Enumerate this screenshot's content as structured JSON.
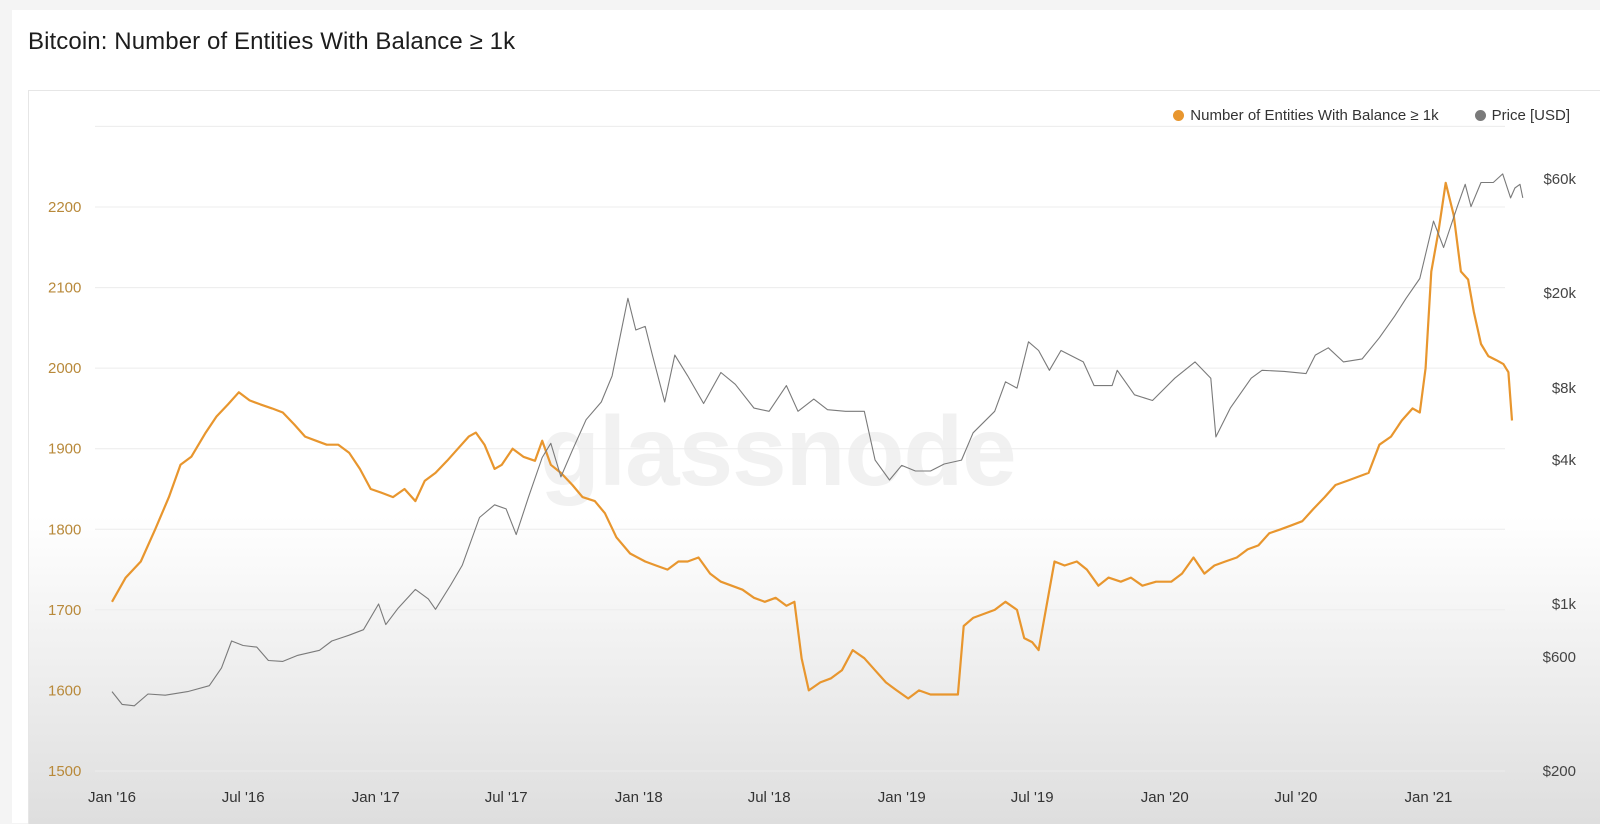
{
  "title": "Bitcoin: Number of Entities With Balance ≥ 1k",
  "watermark": "glassnode",
  "colors": {
    "entities": "#e8962e",
    "price": "#7a7a7a",
    "axis_left": "#b8893a",
    "axis_right": "#444444"
  },
  "legend": [
    {
      "label": "Number of Entities With Balance ≥ 1k",
      "color": "#e8962e"
    },
    {
      "label": "Price [USD]",
      "color": "#7a7a7a"
    }
  ],
  "chart_data": {
    "type": "line",
    "x_ticks": [
      "Jan '16",
      "Jul '16",
      "Jan '17",
      "Jul '17",
      "Jan '18",
      "Jul '18",
      "Jan '19",
      "Jul '19",
      "Jan '20",
      "Jul '20",
      "Jan '21"
    ],
    "y_left": {
      "ticks": [
        1500,
        1600,
        1700,
        1800,
        1900,
        2000,
        2100,
        2200
      ],
      "labels": [
        "1500",
        "1600",
        "1700",
        "1800",
        "1900",
        "2000",
        "2100",
        "2200"
      ],
      "range": [
        1500,
        2200
      ]
    },
    "y_right": {
      "scale": "log",
      "ticks": [
        200,
        600,
        1000,
        4000,
        8000,
        20000,
        60000
      ],
      "labels": [
        "$200",
        "$600",
        "$1k",
        "$4k",
        "$8k",
        "$20k",
        "$60k"
      ]
    },
    "series": [
      {
        "name": "Number of Entities With Balance ≥ 1k",
        "axis": "left",
        "points": [
          [
            "2016-01-01",
            1710
          ],
          [
            "2016-01-20",
            1740
          ],
          [
            "2016-02-10",
            1760
          ],
          [
            "2016-03-01",
            1800
          ],
          [
            "2016-03-20",
            1840
          ],
          [
            "2016-04-05",
            1880
          ],
          [
            "2016-04-20",
            1890
          ],
          [
            "2016-05-10",
            1920
          ],
          [
            "2016-05-25",
            1940
          ],
          [
            "2016-06-10",
            1955
          ],
          [
            "2016-06-25",
            1970
          ],
          [
            "2016-07-10",
            1960
          ],
          [
            "2016-07-25",
            1955
          ],
          [
            "2016-08-10",
            1950
          ],
          [
            "2016-08-25",
            1945
          ],
          [
            "2016-09-10",
            1930
          ],
          [
            "2016-09-25",
            1915
          ],
          [
            "2016-10-10",
            1910
          ],
          [
            "2016-10-25",
            1905
          ],
          [
            "2016-11-10",
            1905
          ],
          [
            "2016-11-25",
            1895
          ],
          [
            "2016-12-10",
            1875
          ],
          [
            "2016-12-25",
            1850
          ],
          [
            "2017-01-10",
            1845
          ],
          [
            "2017-01-25",
            1840
          ],
          [
            "2017-02-10",
            1850
          ],
          [
            "2017-02-25",
            1835
          ],
          [
            "2017-03-10",
            1860
          ],
          [
            "2017-03-25",
            1870
          ],
          [
            "2017-04-10",
            1885
          ],
          [
            "2017-04-25",
            1900
          ],
          [
            "2017-05-10",
            1915
          ],
          [
            "2017-05-20",
            1920
          ],
          [
            "2017-06-01",
            1905
          ],
          [
            "2017-06-15",
            1875
          ],
          [
            "2017-06-25",
            1880
          ],
          [
            "2017-07-10",
            1900
          ],
          [
            "2017-07-25",
            1890
          ],
          [
            "2017-08-10",
            1885
          ],
          [
            "2017-08-20",
            1910
          ],
          [
            "2017-09-01",
            1880
          ],
          [
            "2017-09-15",
            1870
          ],
          [
            "2017-10-01",
            1855
          ],
          [
            "2017-10-15",
            1840
          ],
          [
            "2017-11-01",
            1835
          ],
          [
            "2017-11-15",
            1820
          ],
          [
            "2017-12-01",
            1790
          ],
          [
            "2017-12-20",
            1770
          ],
          [
            "2018-01-10",
            1760
          ],
          [
            "2018-01-25",
            1755
          ],
          [
            "2018-02-10",
            1750
          ],
          [
            "2018-02-25",
            1760
          ],
          [
            "2018-03-10",
            1760
          ],
          [
            "2018-03-25",
            1765
          ],
          [
            "2018-04-10",
            1745
          ],
          [
            "2018-04-25",
            1735
          ],
          [
            "2018-05-10",
            1730
          ],
          [
            "2018-05-25",
            1725
          ],
          [
            "2018-06-10",
            1715
          ],
          [
            "2018-06-25",
            1710
          ],
          [
            "2018-07-10",
            1715
          ],
          [
            "2018-07-25",
            1705
          ],
          [
            "2018-08-05",
            1710
          ],
          [
            "2018-08-15",
            1640
          ],
          [
            "2018-08-25",
            1600
          ],
          [
            "2018-09-10",
            1610
          ],
          [
            "2018-09-25",
            1615
          ],
          [
            "2018-10-10",
            1625
          ],
          [
            "2018-10-25",
            1650
          ],
          [
            "2018-11-10",
            1640
          ],
          [
            "2018-11-25",
            1625
          ],
          [
            "2018-12-10",
            1610
          ],
          [
            "2018-12-25",
            1600
          ],
          [
            "2019-01-10",
            1590
          ],
          [
            "2019-01-25",
            1600
          ],
          [
            "2019-02-10",
            1595
          ],
          [
            "2019-02-25",
            1595
          ],
          [
            "2019-03-10",
            1595
          ],
          [
            "2019-03-20",
            1595
          ],
          [
            "2019-03-28",
            1680
          ],
          [
            "2019-04-10",
            1690
          ],
          [
            "2019-04-25",
            1695
          ],
          [
            "2019-05-10",
            1700
          ],
          [
            "2019-05-25",
            1710
          ],
          [
            "2019-06-10",
            1700
          ],
          [
            "2019-06-20",
            1665
          ],
          [
            "2019-07-01",
            1660
          ],
          [
            "2019-07-10",
            1650
          ],
          [
            "2019-07-20",
            1700
          ],
          [
            "2019-08-01",
            1760
          ],
          [
            "2019-08-15",
            1755
          ],
          [
            "2019-09-01",
            1760
          ],
          [
            "2019-09-15",
            1750
          ],
          [
            "2019-10-01",
            1730
          ],
          [
            "2019-10-15",
            1740
          ],
          [
            "2019-11-01",
            1735
          ],
          [
            "2019-11-15",
            1740
          ],
          [
            "2019-12-01",
            1730
          ],
          [
            "2019-12-20",
            1735
          ],
          [
            "2020-01-10",
            1735
          ],
          [
            "2020-01-25",
            1745
          ],
          [
            "2020-02-10",
            1765
          ],
          [
            "2020-02-25",
            1745
          ],
          [
            "2020-03-10",
            1755
          ],
          [
            "2020-03-25",
            1760
          ],
          [
            "2020-04-10",
            1765
          ],
          [
            "2020-04-25",
            1775
          ],
          [
            "2020-05-10",
            1780
          ],
          [
            "2020-05-25",
            1795
          ],
          [
            "2020-06-10",
            1800
          ],
          [
            "2020-06-25",
            1805
          ],
          [
            "2020-07-10",
            1810
          ],
          [
            "2020-07-25",
            1825
          ],
          [
            "2020-08-10",
            1840
          ],
          [
            "2020-08-25",
            1855
          ],
          [
            "2020-09-10",
            1860
          ],
          [
            "2020-09-25",
            1865
          ],
          [
            "2020-10-10",
            1870
          ],
          [
            "2020-10-25",
            1905
          ],
          [
            "2020-11-10",
            1915
          ],
          [
            "2020-11-25",
            1935
          ],
          [
            "2020-12-10",
            1950
          ],
          [
            "2020-12-20",
            1945
          ],
          [
            "2020-12-28",
            2000
          ],
          [
            "2021-01-05",
            2120
          ],
          [
            "2021-01-15",
            2170
          ],
          [
            "2021-01-25",
            2230
          ],
          [
            "2021-02-05",
            2190
          ],
          [
            "2021-02-15",
            2120
          ],
          [
            "2021-02-25",
            2110
          ],
          [
            "2021-03-05",
            2070
          ],
          [
            "2021-03-15",
            2030
          ],
          [
            "2021-03-25",
            2015
          ],
          [
            "2021-04-05",
            2010
          ],
          [
            "2021-04-15",
            2005
          ],
          [
            "2021-04-22",
            1995
          ],
          [
            "2021-04-27",
            1935
          ]
        ]
      },
      {
        "name": "Price [USD]",
        "axis": "right",
        "points": [
          [
            "2016-01-01",
            430
          ],
          [
            "2016-01-15",
            380
          ],
          [
            "2016-02-01",
            375
          ],
          [
            "2016-02-20",
            420
          ],
          [
            "2016-03-15",
            415
          ],
          [
            "2016-04-15",
            430
          ],
          [
            "2016-05-15",
            455
          ],
          [
            "2016-06-01",
            540
          ],
          [
            "2016-06-15",
            700
          ],
          [
            "2016-07-01",
            670
          ],
          [
            "2016-07-20",
            660
          ],
          [
            "2016-08-05",
            580
          ],
          [
            "2016-08-25",
            575
          ],
          [
            "2016-09-15",
            610
          ],
          [
            "2016-10-15",
            640
          ],
          [
            "2016-11-01",
            700
          ],
          [
            "2016-11-25",
            740
          ],
          [
            "2016-12-15",
            780
          ],
          [
            "2017-01-05",
            1000
          ],
          [
            "2017-01-15",
            820
          ],
          [
            "2017-02-01",
            960
          ],
          [
            "2017-02-25",
            1150
          ],
          [
            "2017-03-15",
            1050
          ],
          [
            "2017-03-25",
            950
          ],
          [
            "2017-04-15",
            1200
          ],
          [
            "2017-05-01",
            1450
          ],
          [
            "2017-05-25",
            2300
          ],
          [
            "2017-06-15",
            2600
          ],
          [
            "2017-07-01",
            2500
          ],
          [
            "2017-07-15",
            1950
          ],
          [
            "2017-08-01",
            2800
          ],
          [
            "2017-08-20",
            4100
          ],
          [
            "2017-09-01",
            4700
          ],
          [
            "2017-09-15",
            3400
          ],
          [
            "2017-10-01",
            4400
          ],
          [
            "2017-10-20",
            5900
          ],
          [
            "2017-11-10",
            7000
          ],
          [
            "2017-11-25",
            9000
          ],
          [
            "2017-12-10",
            15000
          ],
          [
            "2017-12-17",
            19000
          ],
          [
            "2017-12-28",
            14000
          ],
          [
            "2018-01-10",
            14500
          ],
          [
            "2018-01-20",
            11000
          ],
          [
            "2018-02-06",
            7000
          ],
          [
            "2018-02-20",
            11000
          ],
          [
            "2018-03-10",
            9000
          ],
          [
            "2018-04-01",
            6900
          ],
          [
            "2018-04-25",
            9300
          ],
          [
            "2018-05-15",
            8300
          ],
          [
            "2018-06-10",
            6600
          ],
          [
            "2018-07-01",
            6400
          ],
          [
            "2018-07-25",
            8200
          ],
          [
            "2018-08-10",
            6400
          ],
          [
            "2018-09-01",
            7200
          ],
          [
            "2018-09-20",
            6500
          ],
          [
            "2018-10-15",
            6400
          ],
          [
            "2018-11-10",
            6400
          ],
          [
            "2018-11-25",
            4000
          ],
          [
            "2018-12-15",
            3300
          ],
          [
            "2019-01-01",
            3800
          ],
          [
            "2019-01-20",
            3600
          ],
          [
            "2019-02-10",
            3600
          ],
          [
            "2019-03-01",
            3850
          ],
          [
            "2019-03-25",
            4000
          ],
          [
            "2019-04-10",
            5200
          ],
          [
            "2019-05-10",
            6400
          ],
          [
            "2019-05-25",
            8500
          ],
          [
            "2019-06-10",
            8000
          ],
          [
            "2019-06-26",
            12500
          ],
          [
            "2019-07-10",
            11500
          ],
          [
            "2019-07-25",
            9500
          ],
          [
            "2019-08-10",
            11500
          ],
          [
            "2019-09-10",
            10300
          ],
          [
            "2019-09-25",
            8200
          ],
          [
            "2019-10-20",
            8200
          ],
          [
            "2019-10-27",
            9500
          ],
          [
            "2019-11-20",
            7500
          ],
          [
            "2019-12-15",
            7100
          ],
          [
            "2020-01-15",
            8800
          ],
          [
            "2020-02-12",
            10300
          ],
          [
            "2020-03-05",
            8800
          ],
          [
            "2020-03-12",
            5000
          ],
          [
            "2020-04-01",
            6600
          ],
          [
            "2020-04-30",
            8800
          ],
          [
            "2020-05-15",
            9500
          ],
          [
            "2020-06-15",
            9400
          ],
          [
            "2020-07-15",
            9200
          ],
          [
            "2020-07-28",
            11000
          ],
          [
            "2020-08-15",
            11800
          ],
          [
            "2020-09-05",
            10300
          ],
          [
            "2020-10-01",
            10600
          ],
          [
            "2020-10-25",
            13000
          ],
          [
            "2020-11-15",
            16000
          ],
          [
            "2020-12-01",
            19000
          ],
          [
            "2020-12-20",
            23000
          ],
          [
            "2021-01-08",
            40000
          ],
          [
            "2021-01-22",
            31000
          ],
          [
            "2021-02-10",
            46000
          ],
          [
            "2021-02-21",
            57000
          ],
          [
            "2021-03-01",
            46000
          ],
          [
            "2021-03-15",
            58000
          ],
          [
            "2021-04-01",
            58000
          ],
          [
            "2021-04-14",
            63000
          ],
          [
            "2021-04-25",
            50000
          ],
          [
            "2021-05-01",
            55000
          ],
          [
            "2021-05-08",
            57000
          ],
          [
            "2021-05-12",
            50000
          ]
        ]
      }
    ],
    "legend_position": "top-right",
    "grid": "horizontal"
  }
}
